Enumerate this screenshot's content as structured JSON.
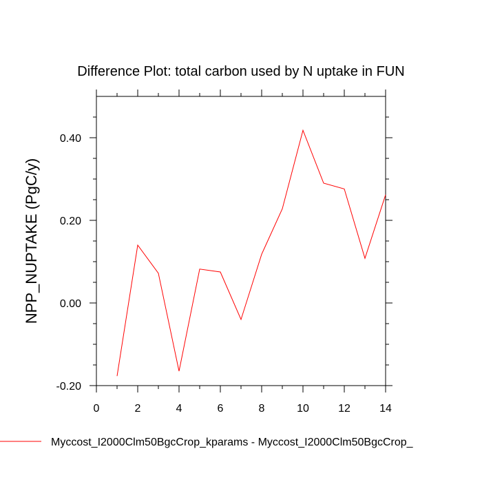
{
  "chart_data": {
    "type": "line",
    "title": "Difference Plot: total carbon used by N uptake in FUN",
    "xlabel": "",
    "ylabel": "NPP_NUPTAKE  (PgC/y)",
    "xlim": [
      0,
      14
    ],
    "ylim": [
      -0.2,
      0.5
    ],
    "x_ticks": [
      0,
      2,
      4,
      6,
      8,
      10,
      12,
      14
    ],
    "x_tick_labels": [
      "0",
      "2",
      "4",
      "6",
      "8",
      "10",
      "12",
      "14"
    ],
    "y_ticks": [
      -0.2,
      0.0,
      0.2,
      0.4
    ],
    "y_tick_labels": [
      "-0.20",
      "0.00",
      "0.20",
      "0.40"
    ],
    "grid": false,
    "legend_position": "bottom",
    "series": [
      {
        "name": "Myccost_I2000Clm50BgcCrop_kparams - Myccost_I2000Clm50BgcCrop_",
        "color": "#ff0000",
        "x": [
          1,
          2,
          3,
          4,
          5,
          6,
          7,
          8,
          9,
          10,
          11,
          12,
          13,
          14
        ],
        "y": [
          -0.177,
          0.14,
          0.072,
          -0.165,
          0.082,
          0.075,
          -0.04,
          0.118,
          0.228,
          0.418,
          0.29,
          0.276,
          0.108,
          0.262
        ]
      }
    ]
  }
}
